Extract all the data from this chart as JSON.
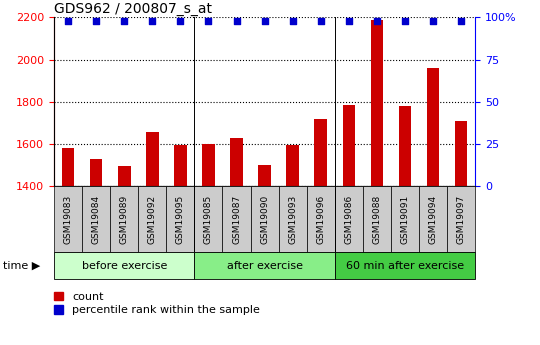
{
  "title": "GDS962 / 200807_s_at",
  "samples": [
    "GSM19083",
    "GSM19084",
    "GSM19089",
    "GSM19092",
    "GSM19095",
    "GSM19085",
    "GSM19087",
    "GSM19090",
    "GSM19093",
    "GSM19096",
    "GSM19086",
    "GSM19088",
    "GSM19091",
    "GSM19094",
    "GSM19097"
  ],
  "counts": [
    1580,
    1530,
    1495,
    1655,
    1595,
    1600,
    1630,
    1500,
    1595,
    1720,
    1785,
    2185,
    1780,
    1960,
    1710
  ],
  "percentile_ranks": [
    98,
    98,
    98,
    98,
    98,
    98,
    98,
    98,
    98,
    98,
    98,
    98,
    98,
    98,
    98
  ],
  "groups": [
    {
      "label": "before exercise",
      "start": 0,
      "end": 5,
      "color": "#ccffcc"
    },
    {
      "label": "after exercise",
      "start": 5,
      "end": 10,
      "color": "#88ee88"
    },
    {
      "label": "60 min after exercise",
      "start": 10,
      "end": 15,
      "color": "#44cc44"
    }
  ],
  "bar_color": "#cc0000",
  "dot_color": "#0000cc",
  "ylim_left": [
    1400,
    2200
  ],
  "yticks_left": [
    1400,
    1600,
    1800,
    2000,
    2200
  ],
  "ylim_right": [
    0,
    100
  ],
  "yticks_right": [
    0,
    25,
    50,
    75,
    100
  ],
  "bar_width": 0.45,
  "plot_bg_color": "#ffffff",
  "tick_box_color": "#cccccc",
  "fig_bg": "#ffffff"
}
